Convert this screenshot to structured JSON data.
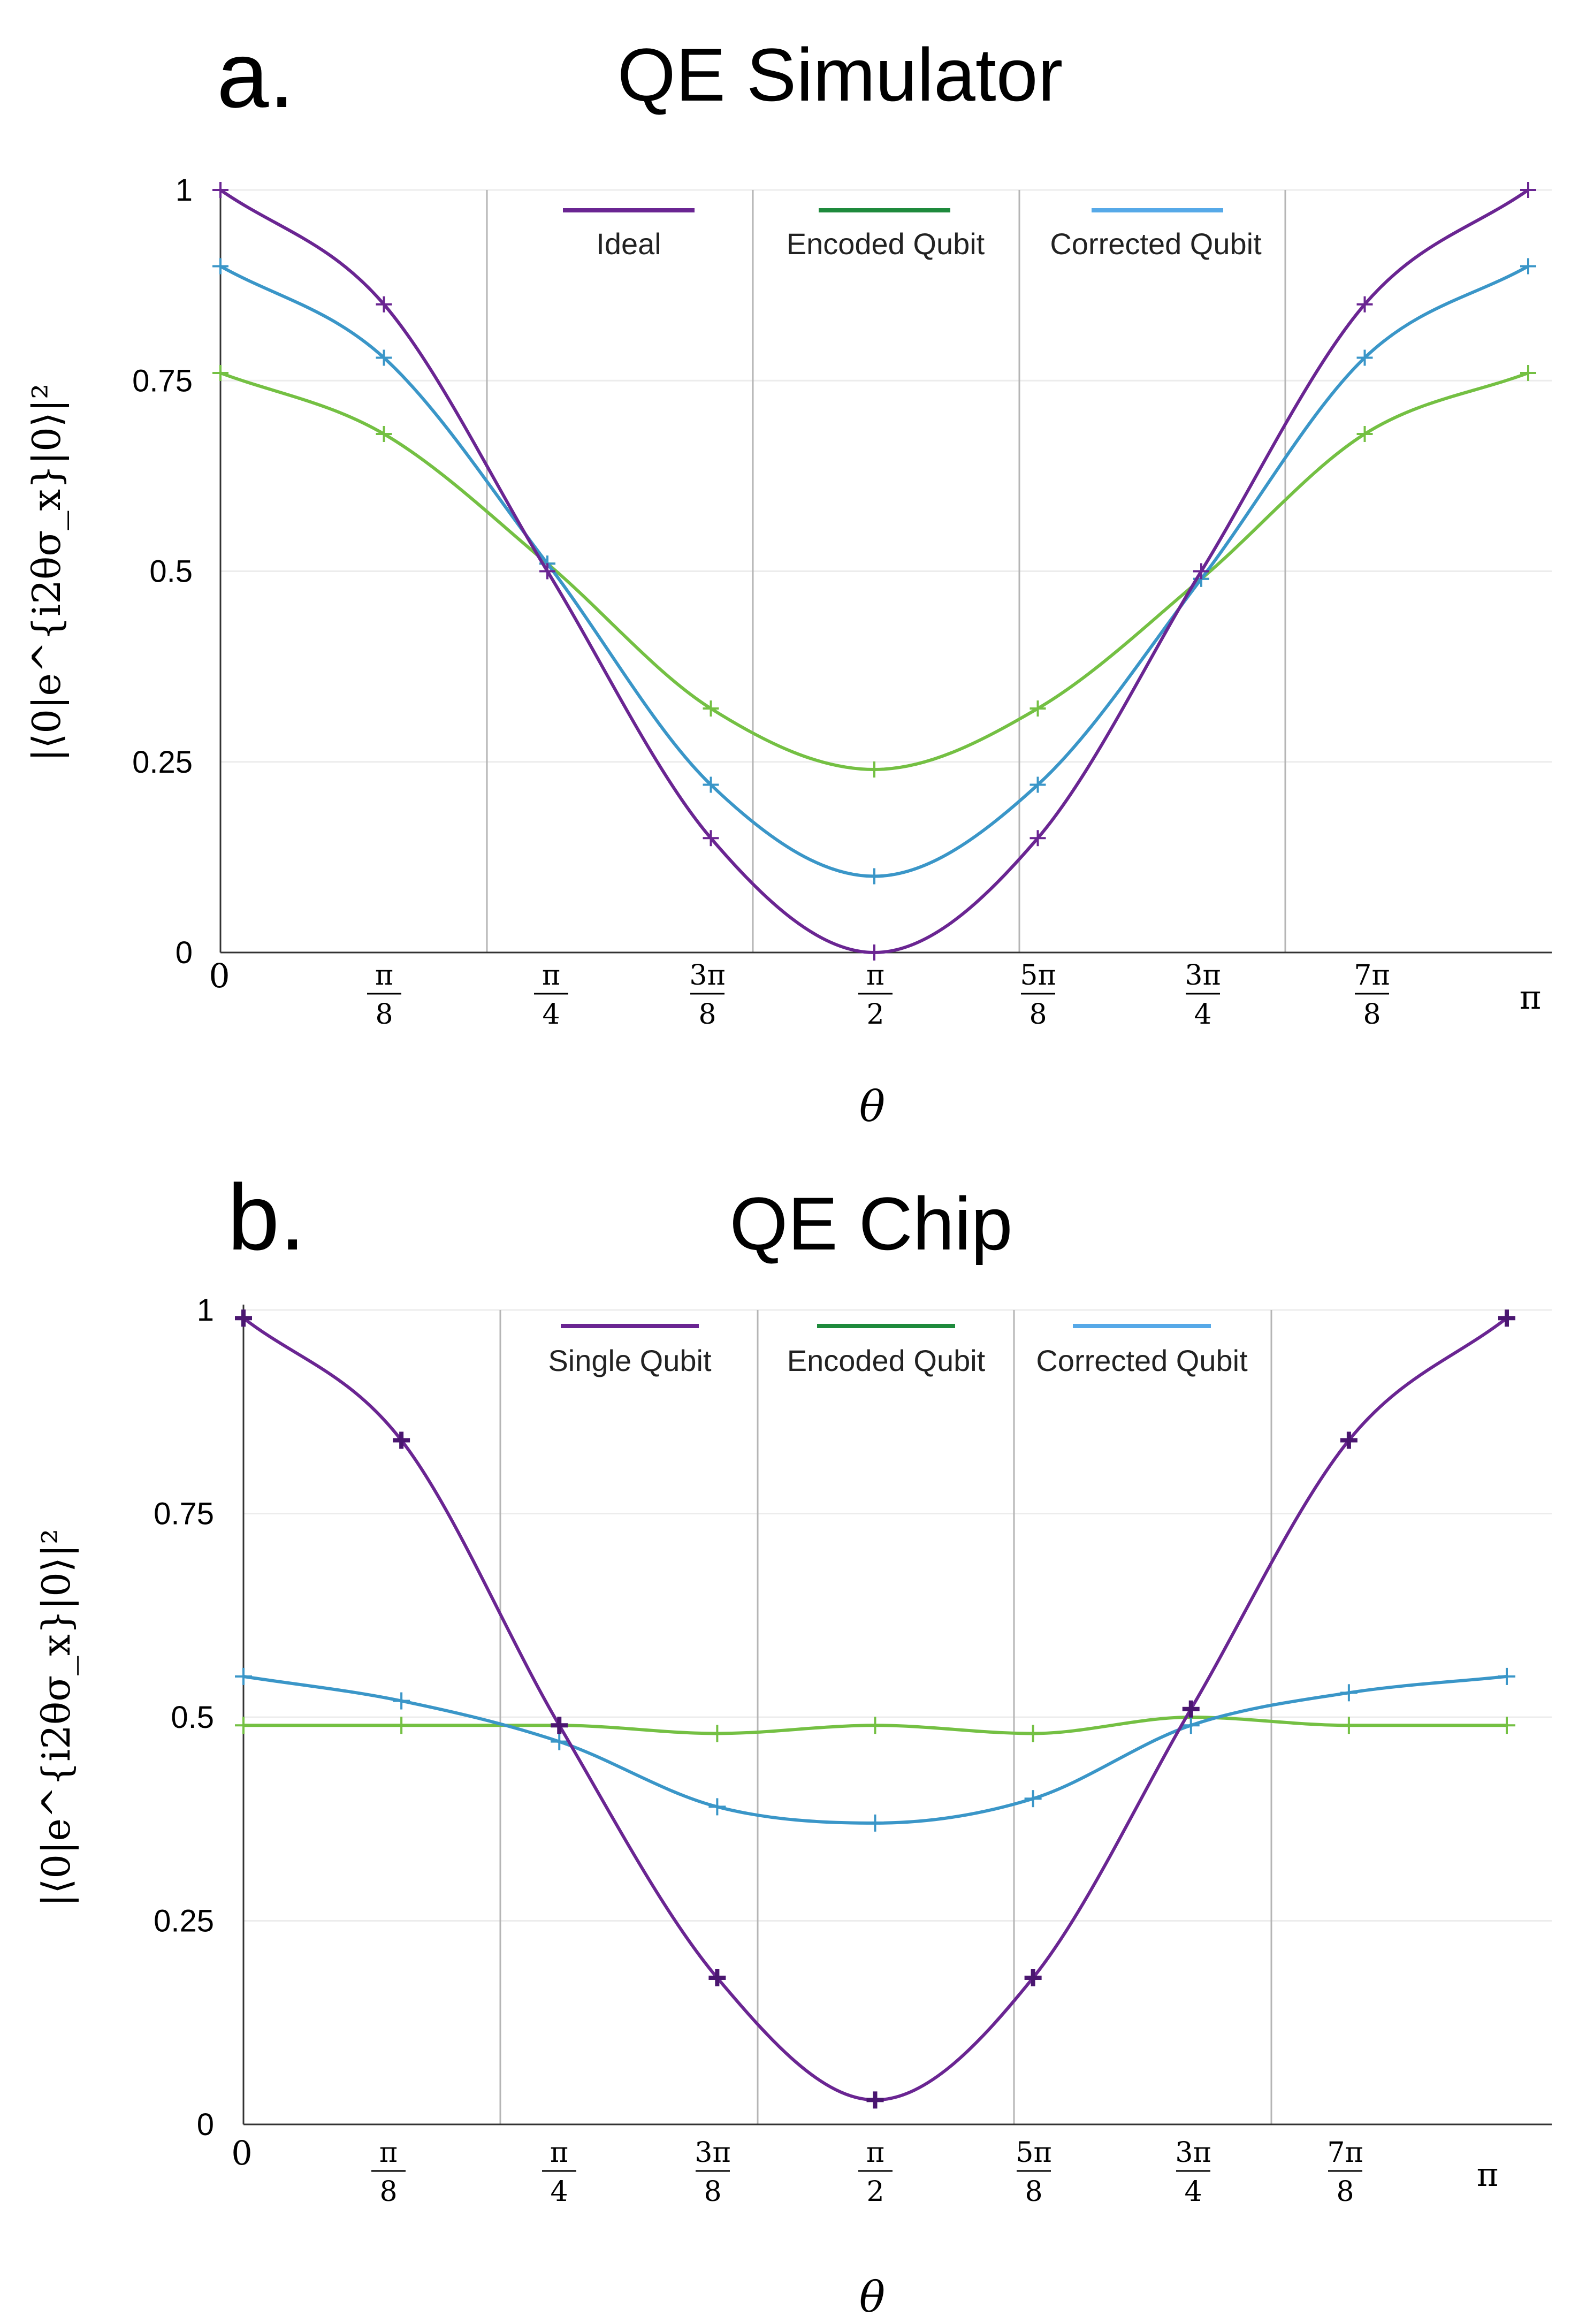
{
  "figure": {
    "panel_a_letter": "a.",
    "panel_b_letter": "b."
  },
  "colors": {
    "purple": "#6a2592",
    "purple_dark": "#4a1670",
    "green": "#74c043",
    "green_legend": "#1e8a3c",
    "blue": "#3a96c8",
    "blue_light": "#56a9e8",
    "gridline": "#b5b5b5",
    "hgrid": "#ececec",
    "axis": "#333333"
  },
  "chart_data": [
    {
      "type": "line",
      "panel": "a.",
      "title": "QE Simulator",
      "xlabel": "θ",
      "ylabel": "|⟨0|e^{i2θσ_x}|0⟩|²",
      "ylim": [
        0,
        1
      ],
      "xlim": [
        0,
        3.14159
      ],
      "yticks": [
        0,
        0.25,
        0.5,
        0.75,
        1
      ],
      "ytick_labels": [
        "0",
        "0.25",
        "0.5",
        "0.75",
        "1"
      ],
      "xtick_labels": [
        {
          "num": "0",
          "den": ""
        },
        {
          "num": "π",
          "den": "8"
        },
        {
          "num": "π",
          "den": "4"
        },
        {
          "num": "3π",
          "den": "8"
        },
        {
          "num": "π",
          "den": "2"
        },
        {
          "num": "5π",
          "den": "8"
        },
        {
          "num": "3π",
          "den": "4"
        },
        {
          "num": "7π",
          "den": "8"
        },
        {
          "num": "π",
          "den": ""
        }
      ],
      "x": [
        0,
        0.3927,
        0.7854,
        1.1781,
        1.5708,
        1.9635,
        2.3562,
        2.7489,
        3.1416
      ],
      "series": [
        {
          "name": "Ideal",
          "color": "purple",
          "values": [
            1.0,
            0.85,
            0.5,
            0.15,
            0.0,
            0.15,
            0.5,
            0.85,
            1.0
          ]
        },
        {
          "name": "Encoded Qubit",
          "color": "green",
          "values": [
            0.76,
            0.68,
            0.51,
            0.32,
            0.24,
            0.32,
            0.49,
            0.68,
            0.76
          ]
        },
        {
          "name": "Corrected Qubit",
          "color": "blue",
          "values": [
            0.9,
            0.78,
            0.51,
            0.22,
            0.1,
            0.22,
            0.49,
            0.78,
            0.9
          ]
        }
      ],
      "legend": [
        {
          "label": "Ideal",
          "color": "purple"
        },
        {
          "label": "Encoded Qubit",
          "color": "green_legend"
        },
        {
          "label": "Corrected Qubit",
          "color": "blue_light"
        }
      ],
      "grid": "vertical"
    },
    {
      "type": "line",
      "panel": "b.",
      "title": "QE Chip",
      "xlabel": "θ",
      "ylabel": "|⟨0|e^{i2θσ_x}|0⟩|²",
      "ylim": [
        0,
        1
      ],
      "xlim": [
        0,
        3.14159
      ],
      "yticks": [
        0,
        0.25,
        0.5,
        0.75,
        1
      ],
      "ytick_labels": [
        "0",
        "0.25",
        "0.5",
        "0.75",
        "1"
      ],
      "xtick_labels": [
        {
          "num": "0",
          "den": ""
        },
        {
          "num": "π",
          "den": "8"
        },
        {
          "num": "π",
          "den": "4"
        },
        {
          "num": "3π",
          "den": "8"
        },
        {
          "num": "π",
          "den": "2"
        },
        {
          "num": "5π",
          "den": "8"
        },
        {
          "num": "3π",
          "den": "4"
        },
        {
          "num": "7π",
          "den": "8"
        },
        {
          "num": "π",
          "den": ""
        }
      ],
      "x": [
        0,
        0.3927,
        0.7854,
        1.1781,
        1.5708,
        1.9635,
        2.3562,
        2.7489,
        3.1416
      ],
      "series": [
        {
          "name": "Single Qubit",
          "color": "purple",
          "values": [
            0.99,
            0.84,
            0.49,
            0.18,
            0.03,
            0.18,
            0.51,
            0.84,
            0.99
          ]
        },
        {
          "name": "Encoded Qubit",
          "color": "green",
          "values": [
            0.49,
            0.49,
            0.49,
            0.48,
            0.49,
            0.48,
            0.5,
            0.49,
            0.49
          ]
        },
        {
          "name": "Corrected Qubit",
          "color": "blue",
          "values": [
            0.55,
            0.52,
            0.47,
            0.39,
            0.37,
            0.4,
            0.49,
            0.53,
            0.55
          ]
        }
      ],
      "legend": [
        {
          "label": "Single Qubit",
          "color": "purple"
        },
        {
          "label": "Encoded Qubit",
          "color": "green_legend"
        },
        {
          "label": "Corrected Qubit",
          "color": "blue_light"
        }
      ],
      "grid": "vertical"
    }
  ]
}
